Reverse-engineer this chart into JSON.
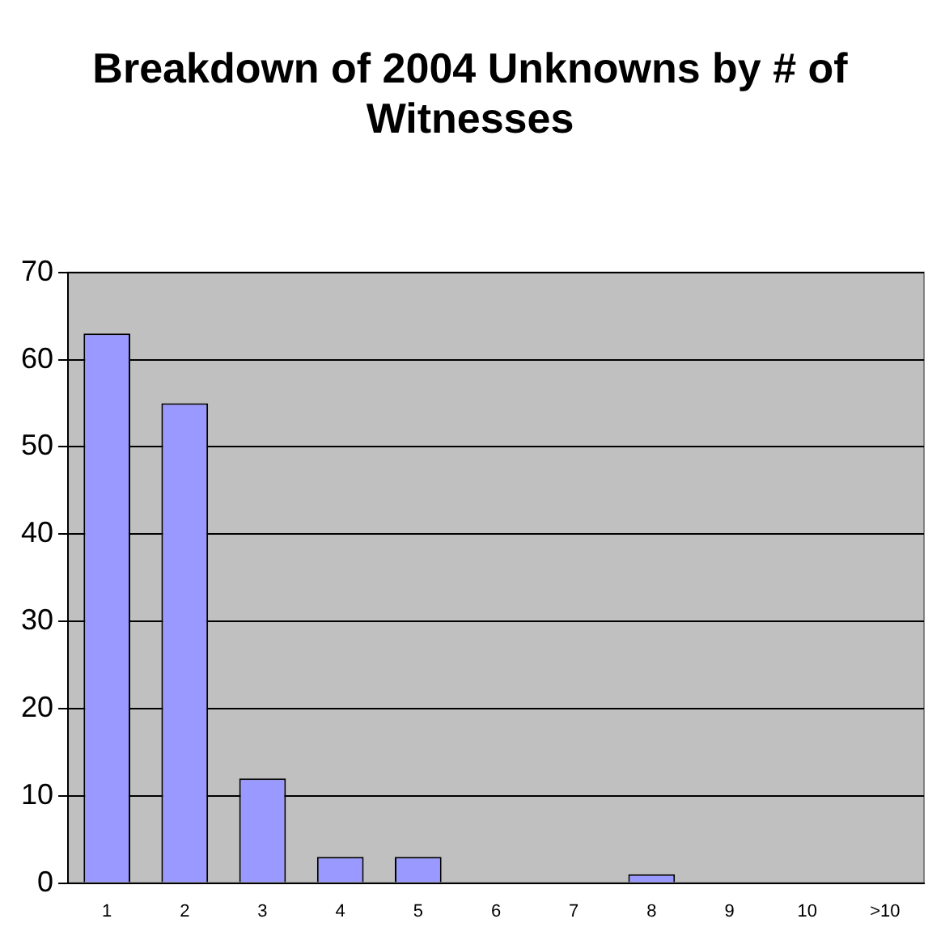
{
  "chart_data": {
    "type": "bar",
    "title": "Breakdown of 2004 Unknowns by # of Witnesses",
    "categories": [
      "1",
      "2",
      "3",
      "4",
      "5",
      "6",
      "7",
      "8",
      "9",
      "10",
      ">10"
    ],
    "values": [
      63,
      55,
      12,
      3,
      3,
      0,
      0,
      1,
      0,
      0,
      0
    ],
    "color": "#9999ff",
    "ylim": [
      0,
      70
    ],
    "yticks": [
      0,
      10,
      20,
      30,
      40,
      50,
      60,
      70
    ],
    "grid": "y",
    "legend": false
  }
}
